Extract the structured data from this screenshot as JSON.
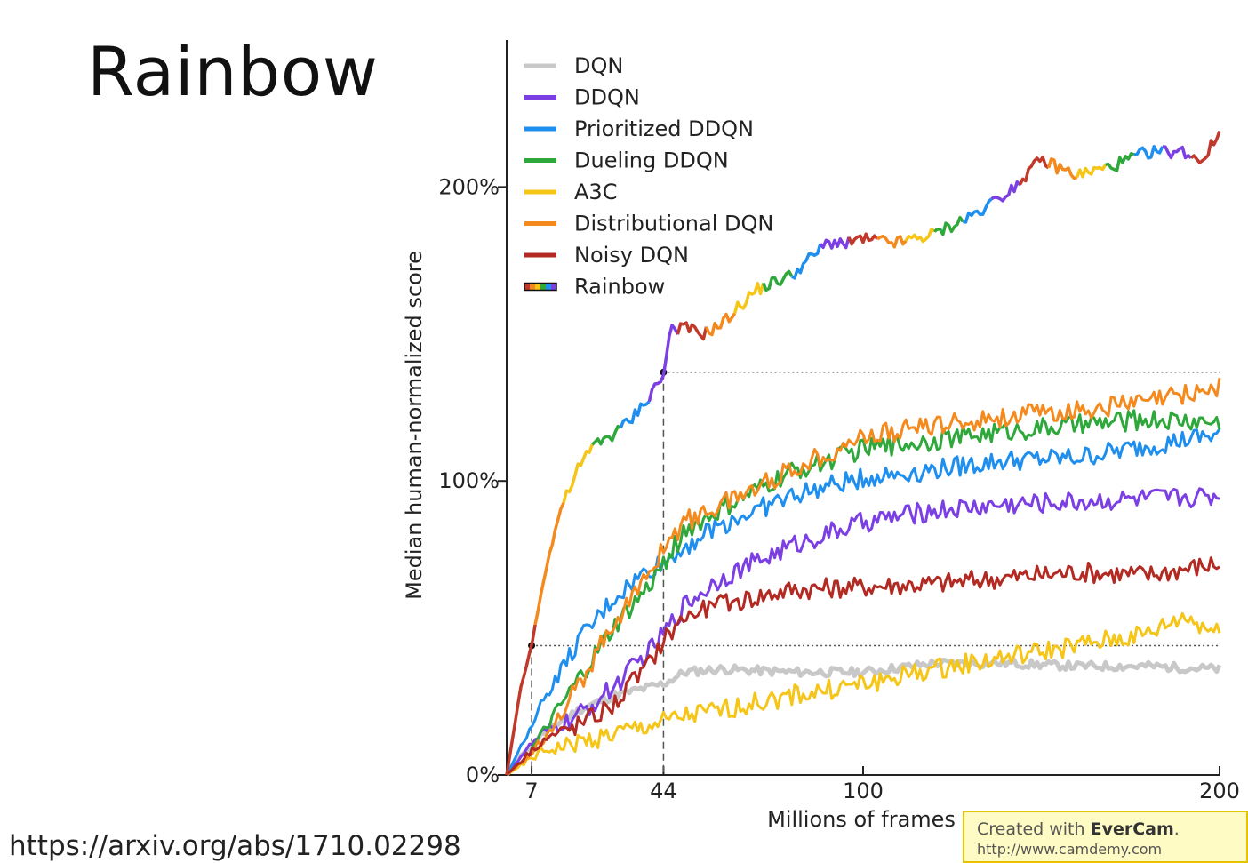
{
  "slide": {
    "title": "Rainbow",
    "source": "https://arxiv.org/abs/1710.02298"
  },
  "watermark": {
    "prefix": "Created with ",
    "brand": "EverCam",
    "suffix": ".",
    "url": "http://www.camdemy.com"
  },
  "chart_data": {
    "type": "line",
    "xlabel": "Millions of frames",
    "ylabel": "Median human-normalized score",
    "xlim": [
      0,
      200
    ],
    "ylim": [
      0,
      250
    ],
    "xticks": [
      7,
      44,
      100,
      200
    ],
    "yticks": [
      {
        "value": 0,
        "label": "0%"
      },
      {
        "value": 100,
        "label": "100%"
      },
      {
        "value": 200,
        "label": "200%"
      }
    ],
    "grid": false,
    "legend_position": "top-left",
    "reference_lines": [
      {
        "y": 44,
        "from_x": 7
      },
      {
        "y": 137,
        "from_x": 44
      }
    ],
    "series": [
      {
        "name": "DQN",
        "color": "#c8c8c8",
        "x": [
          0,
          5,
          10,
          20,
          30,
          44,
          50,
          60,
          80,
          100,
          120,
          140,
          160,
          180,
          200
        ],
        "y": [
          0,
          8,
          14,
          22,
          27,
          31,
          35,
          36,
          35,
          35,
          38,
          38,
          37,
          37,
          36
        ]
      },
      {
        "name": "DDQN",
        "color": "#7b3fe4",
        "x": [
          0,
          5,
          10,
          20,
          30,
          40,
          44,
          50,
          60,
          80,
          100,
          120,
          140,
          160,
          180,
          200
        ],
        "y": [
          0,
          8,
          14,
          20,
          30,
          42,
          48,
          58,
          67,
          78,
          86,
          90,
          92,
          93,
          94,
          95
        ]
      },
      {
        "name": "Prioritized DDQN",
        "color": "#1f8fef",
        "x": [
          0,
          5,
          10,
          20,
          30,
          40,
          44,
          50,
          60,
          80,
          100,
          120,
          140,
          160,
          180,
          200
        ],
        "y": [
          0,
          12,
          25,
          45,
          60,
          70,
          72,
          78,
          85,
          95,
          101,
          104,
          107,
          108,
          112,
          116
        ]
      },
      {
        "name": "Dueling DDQN",
        "color": "#2ea83a",
        "x": [
          0,
          5,
          10,
          20,
          30,
          40,
          44,
          50,
          60,
          80,
          100,
          120,
          140,
          160,
          180,
          200
        ],
        "y": [
          0,
          5,
          14,
          32,
          50,
          64,
          72,
          83,
          90,
          103,
          111,
          114,
          117,
          119,
          121,
          120
        ]
      },
      {
        "name": "A3C",
        "color": "#f5c518",
        "x": [
          0,
          5,
          10,
          20,
          30,
          44,
          50,
          60,
          80,
          100,
          120,
          140,
          160,
          180,
          190,
          200
        ],
        "y": [
          0,
          4,
          8,
          11,
          14,
          18,
          20,
          22,
          27,
          31,
          36,
          40,
          44,
          48,
          54,
          48
        ]
      },
      {
        "name": "Distributional DQN",
        "color": "#f48a1e",
        "x": [
          0,
          5,
          10,
          20,
          30,
          40,
          44,
          50,
          60,
          80,
          100,
          120,
          140,
          160,
          180,
          200
        ],
        "y": [
          0,
          5,
          12,
          30,
          52,
          68,
          78,
          86,
          92,
          104,
          115,
          119,
          122,
          124,
          127,
          132
        ]
      },
      {
        "name": "Noisy DQN",
        "color": "#b22a22",
        "x": [
          0,
          5,
          10,
          20,
          30,
          40,
          44,
          50,
          60,
          80,
          100,
          120,
          140,
          160,
          180,
          200
        ],
        "y": [
          0,
          6,
          12,
          17,
          24,
          38,
          46,
          54,
          58,
          63,
          64,
          65,
          67,
          69,
          68,
          72
        ]
      },
      {
        "name": "Rainbow",
        "color": "#3a7fd8",
        "rainbow": true,
        "x": [
          0,
          4,
          7,
          10,
          15,
          20,
          25,
          30,
          35,
          40,
          44,
          46,
          50,
          55,
          60,
          70,
          80,
          90,
          100,
          110,
          120,
          130,
          140,
          150,
          160,
          170,
          180,
          190,
          195,
          200
        ],
        "y": [
          0,
          30,
          44,
          65,
          90,
          104,
          113,
          116,
          121,
          129,
          136,
          152,
          152,
          150,
          153,
          165,
          170,
          181,
          182,
          181,
          184,
          190,
          198,
          209,
          204,
          207,
          212,
          212,
          209,
          218
        ]
      }
    ]
  }
}
